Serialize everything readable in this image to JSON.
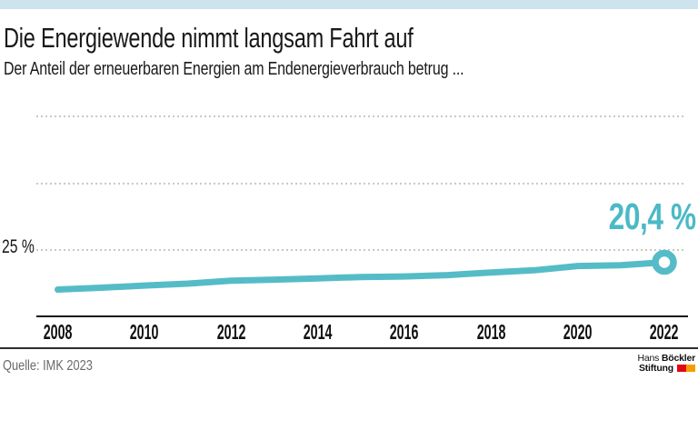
{
  "theme": {
    "top_bar_color": "#cde4ee",
    "background": "#ffffff",
    "grid_color": "#c9c9c0",
    "axis_color": "#161616"
  },
  "header": {
    "title": "Die Energiewende nimmt langsam Fahrt auf",
    "subtitle": "Der Anteil der erneuerbaren Energien am Endenergieverbrauch betrug ..."
  },
  "chart_data": {
    "type": "line",
    "title": "Die Energiewende nimmt langsam Fahrt auf",
    "subtitle": "Der Anteil der erneuerbaren Energien am Endenergieverbrauch betrug ...",
    "x": [
      2008,
      2009,
      2010,
      2011,
      2012,
      2013,
      2014,
      2015,
      2016,
      2017,
      2018,
      2019,
      2020,
      2021,
      2022
    ],
    "values": [
      10.2,
      10.9,
      11.7,
      12.4,
      13.5,
      13.9,
      14.4,
      14.9,
      15.1,
      15.6,
      16.6,
      17.4,
      19.0,
      19.3,
      20.4
    ],
    "unit": "%",
    "x_tick_labels": [
      "2008",
      "2010",
      "2012",
      "2014",
      "2016",
      "2018",
      "2020",
      "2022"
    ],
    "y_axis_label": "25 %",
    "ylim": [
      0,
      75
    ],
    "gridlines_pct": [
      25,
      50,
      75
    ],
    "grid_style": "dotted horizontal, only 25 % labeled",
    "legend": "none",
    "end_label": "20,4 %",
    "last_value": 20.4,
    "line_color": "#55bcc7",
    "value_label_color": "#4bb9c6",
    "marker": "open ring on last point"
  },
  "footer": {
    "source": "Quelle: IMK 2023",
    "logo": {
      "name_regular": "Hans",
      "name_bold": "Böckler",
      "line2_bold": "Stiftung",
      "square_red": "#e30613",
      "square_orange": "#f59c00"
    }
  }
}
